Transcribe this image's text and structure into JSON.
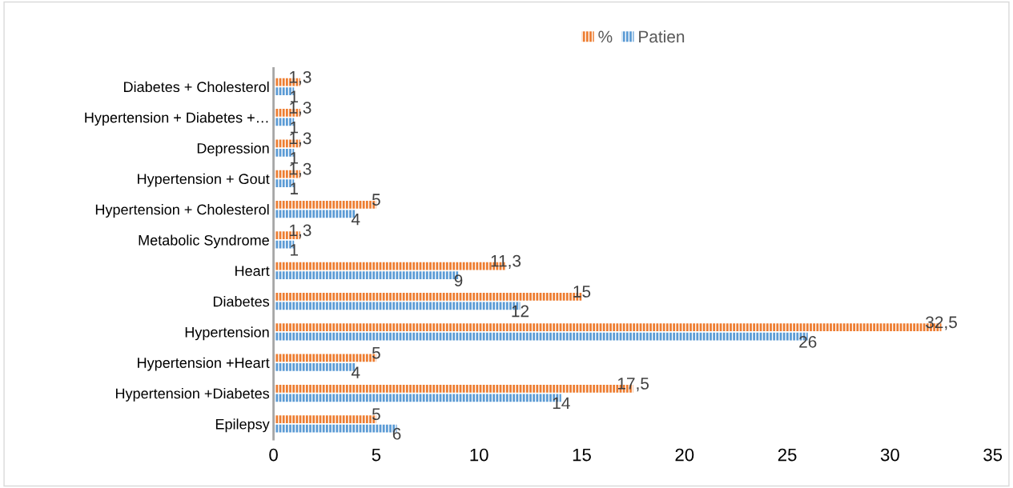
{
  "chart_data": {
    "type": "bar",
    "orientation": "horizontal",
    "categories": [
      "Diabetes + Cholesterol",
      "Hypertension + Diabetes +…",
      "Depression",
      "Hypertension + Gout",
      "Hypertension + Cholesterol",
      "Metabolic Syndrome",
      "Heart",
      "Diabetes",
      "Hypertension",
      "Hypertension +Heart",
      "Hypertension +Diabetes",
      "Epilepsy"
    ],
    "series": [
      {
        "name": "%",
        "color": "#ed7d31",
        "values": [
          1.3,
          1.3,
          1.3,
          1.3,
          5,
          1.3,
          11.3,
          15,
          32.5,
          5,
          17.5,
          5
        ],
        "value_labels": [
          "1,3",
          "1,3",
          "1,3",
          "1,3",
          "5",
          "1,3",
          "11,3",
          "15",
          "32,5",
          "5",
          "17,5",
          "5"
        ]
      },
      {
        "name": "Patien",
        "color": "#5b9bd5",
        "values": [
          1,
          1,
          1,
          1,
          4,
          1,
          9,
          12,
          26,
          4,
          14,
          6
        ],
        "value_labels": [
          "1",
          "1",
          "1",
          "1",
          "4",
          "1",
          "9",
          "12",
          "26",
          "4",
          "14",
          "6"
        ]
      }
    ],
    "xlim": [
      0,
      35
    ],
    "xticks": [
      0,
      5,
      10,
      15,
      20,
      25,
      30,
      35
    ],
    "grid": false,
    "legend": "top"
  }
}
